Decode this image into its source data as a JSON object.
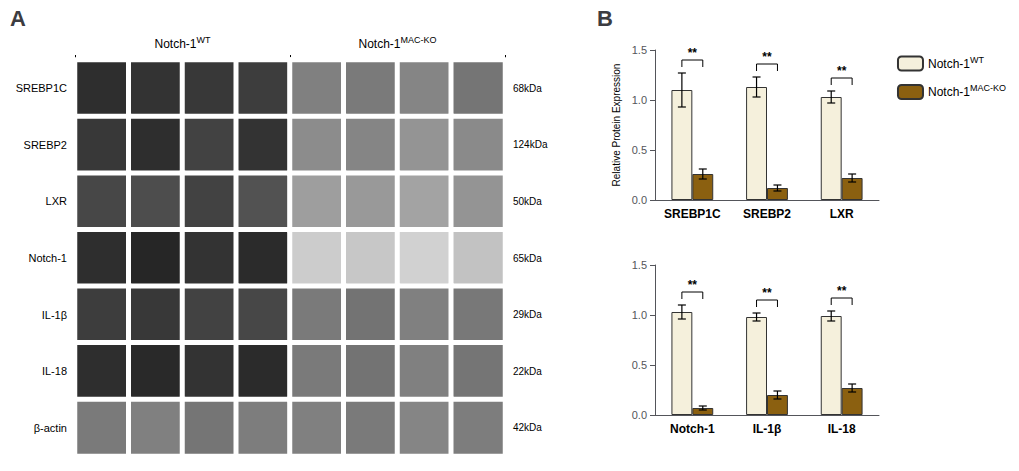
{
  "chart_data": [
    {
      "type": "heatmap",
      "title": "A",
      "rows": [
        "SREBP1C",
        "SREBP2",
        "LXR",
        "Notch-1",
        "IL-1β",
        "IL-18",
        "β-actin"
      ],
      "row_labels_right": [
        "68kDa",
        "124kDa",
        "50kDa",
        "65kDa",
        "29kDa",
        "22kDa",
        "42kDa"
      ],
      "series": [
        {
          "name": "Notch-1",
          "superscript": "WT",
          "values": [
            [
              0.82,
              0.8,
              0.78,
              0.76
            ],
            [
              0.78,
              0.82,
              0.74,
              0.8
            ],
            [
              0.72,
              0.7,
              0.74,
              0.68
            ],
            [
              0.82,
              0.85,
              0.8,
              0.83
            ],
            [
              0.76,
              0.78,
              0.74,
              0.72
            ],
            [
              0.82,
              0.84,
              0.8,
              0.83
            ],
            [
              0.52,
              0.5,
              0.54,
              0.51
            ]
          ]
        },
        {
          "name": "Notch-1",
          "superscript": "MAC-KO",
          "values": [
            [
              0.5,
              0.52,
              0.48,
              0.54
            ],
            [
              0.45,
              0.48,
              0.42,
              0.46
            ],
            [
              0.38,
              0.4,
              0.36,
              0.42
            ],
            [
              0.2,
              0.22,
              0.18,
              0.24
            ],
            [
              0.52,
              0.55,
              0.5,
              0.53
            ],
            [
              0.52,
              0.55,
              0.5,
              0.54
            ],
            [
              0.5,
              0.52,
              0.48,
              0.51
            ]
          ]
        }
      ],
      "value_range": [
        0,
        1
      ],
      "color_range": [
        "#ffffff",
        "#000000"
      ]
    },
    {
      "type": "bar",
      "title": "B",
      "ylabel": "Relative Protein Expression",
      "categories": [
        "SREBP1C",
        "SREBP2",
        "LXR"
      ],
      "series": [
        {
          "name": "Notch-1",
          "superscript": "WT",
          "color": "#F5F0DC",
          "values": [
            1.1,
            1.13,
            1.03
          ],
          "errors": [
            0.17,
            0.1,
            0.06
          ]
        },
        {
          "name": "Notch-1",
          "superscript": "MAC-KO",
          "color": "#8B6010",
          "values": [
            0.26,
            0.12,
            0.22
          ],
          "errors": [
            0.05,
            0.03,
            0.04
          ]
        }
      ],
      "significance": [
        "**",
        "**",
        "**"
      ],
      "ylim": [
        0,
        1.5
      ],
      "yticks": [
        {
          "value": 0,
          "label": "0.0"
        },
        {
          "value": 0.5,
          "label": "0.5"
        },
        {
          "value": 1,
          "label": "1.0"
        },
        {
          "value": 1.5,
          "label": "1.5"
        }
      ],
      "grid": false,
      "legend": "right",
      "edge_color": "#333333"
    },
    {
      "type": "bar",
      "categories": [
        "Notch-1",
        "IL-1β",
        "IL-18"
      ],
      "series": [
        {
          "name": "Notch-1",
          "superscript": "WT",
          "color": "#F5F0DC",
          "values": [
            1.03,
            0.98,
            0.99
          ],
          "errors": [
            0.07,
            0.04,
            0.05
          ]
        },
        {
          "name": "Notch-1",
          "superscript": "MAC-KO",
          "color": "#8B6010",
          "values": [
            0.07,
            0.2,
            0.27
          ],
          "errors": [
            0.02,
            0.04,
            0.04
          ]
        }
      ],
      "significance": [
        "**",
        "**",
        "**"
      ],
      "ylim": [
        0,
        1.5
      ],
      "yticks": [
        {
          "value": 0,
          "label": "0.0"
        },
        {
          "value": 0.5,
          "label": "0.5"
        },
        {
          "value": 1,
          "label": "1.0"
        },
        {
          "value": 1.5,
          "label": "1.5"
        }
      ],
      "grid": false,
      "edge_color": "#333333"
    }
  ]
}
